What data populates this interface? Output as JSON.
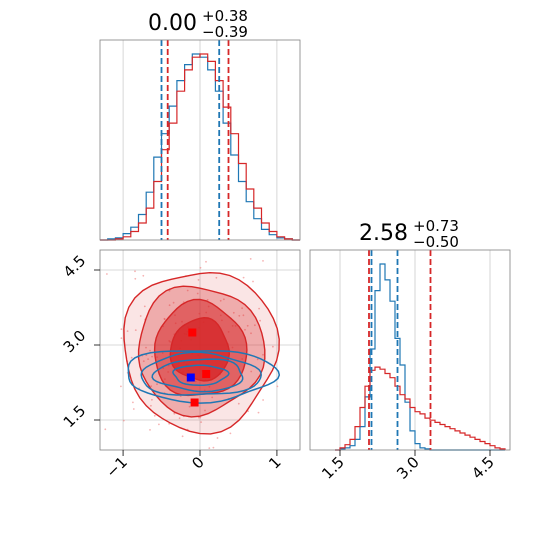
{
  "chart_data": [
    {
      "type": "step-histogram",
      "panel": "top-left",
      "title": {
        "value": "0.00",
        "upper": "+0.38",
        "lower": "−0.39"
      },
      "xlim": [
        -1.3,
        1.3
      ],
      "grid": true,
      "x": [
        -1.25,
        -1.15,
        -1.05,
        -0.95,
        -0.85,
        -0.75,
        -0.65,
        -0.55,
        -0.45,
        -0.35,
        -0.25,
        -0.15,
        -0.05,
        0.05,
        0.15,
        0.25,
        0.35,
        0.45,
        0.55,
        0.65,
        0.75,
        0.85,
        0.95,
        1.05,
        1.15,
        1.25
      ],
      "series": [
        {
          "color": "#1f77b4",
          "values": [
            0,
            1,
            2,
            6,
            12,
            24,
            45,
            78,
            100,
            126,
            150,
            165,
            175,
            172,
            160,
            140,
            110,
            80,
            55,
            36,
            20,
            10,
            5,
            2,
            1,
            0
          ],
          "quantiles": [
            -0.5,
            0.25
          ]
        },
        {
          "color": "#d62728",
          "values": [
            0,
            0,
            1,
            3,
            8,
            16,
            30,
            55,
            85,
            110,
            140,
            160,
            172,
            175,
            168,
            150,
            125,
            100,
            72,
            48,
            30,
            16,
            8,
            3,
            1,
            0
          ],
          "quantiles": [
            -0.42,
            0.37
          ]
        }
      ]
    },
    {
      "type": "contour",
      "panel": "bottom-left",
      "xlim": [
        -1.3,
        1.3
      ],
      "ylim": [
        0.9,
        4.9
      ],
      "x_ticks": [
        "−1",
        "0",
        "1"
      ],
      "y_ticks": [
        "1.5",
        "3.0",
        "4.5"
      ],
      "grid": true,
      "series": [
        {
          "color": "#d62728",
          "filled": true,
          "center": [
            0.0,
            2.9
          ],
          "radii": [
            [
              1.0,
              1.6
            ],
            [
              0.82,
              1.28
            ],
            [
              0.6,
              0.95
            ],
            [
              0.38,
              0.62
            ]
          ]
        },
        {
          "color": "#1f77b4",
          "filled": false,
          "center": [
            0.0,
            2.4
          ],
          "radii": [
            [
              0.98,
              0.52
            ],
            [
              0.78,
              0.42
            ],
            [
              0.58,
              0.32
            ],
            [
              0.35,
              0.2
            ]
          ]
        }
      ],
      "markers": [
        {
          "color": "#0000ff",
          "x": -0.12,
          "y": 2.35
        },
        {
          "color": "#ff0000",
          "x": -0.1,
          "y": 3.25
        },
        {
          "color": "#ff0000",
          "x": 0.08,
          "y": 2.42
        },
        {
          "color": "#ff0000",
          "x": -0.07,
          "y": 1.85
        }
      ]
    },
    {
      "type": "step-histogram",
      "panel": "bottom-right",
      "title": {
        "value": "2.58",
        "upper": "+0.73",
        "lower": "−0.50"
      },
      "xlim": [
        0.9,
        4.9
      ],
      "x_ticks": [
        "1.5",
        "3.0",
        "4.5"
      ],
      "grid": true,
      "x": [
        1.45,
        1.55,
        1.65,
        1.75,
        1.85,
        1.95,
        2.05,
        2.15,
        2.25,
        2.35,
        2.45,
        2.55,
        2.65,
        2.75,
        2.85,
        2.95,
        3.05,
        3.15,
        3.25,
        3.35,
        3.45,
        3.55,
        3.65,
        3.75,
        3.85,
        3.95,
        4.05,
        4.15,
        4.25,
        4.35,
        4.45,
        4.55,
        4.65,
        4.75
      ],
      "series": [
        {
          "color": "#1f77b4",
          "values": [
            0,
            1,
            2,
            4,
            10,
            22,
            50,
            95,
            150,
            175,
            160,
            140,
            105,
            80,
            45,
            18,
            6,
            2,
            1,
            0,
            0,
            0,
            0,
            0,
            0,
            0,
            0,
            0,
            0,
            0,
            0,
            0,
            0,
            0
          ],
          "quantiles": [
            2.13,
            2.65
          ]
        },
        {
          "color": "#d62728",
          "values": [
            0,
            2,
            5,
            10,
            22,
            40,
            60,
            75,
            78,
            76,
            72,
            68,
            60,
            52,
            48,
            40,
            36,
            34,
            30,
            28,
            26,
            24,
            22,
            20,
            18,
            16,
            14,
            12,
            10,
            8,
            6,
            4,
            2,
            1
          ],
          "quantiles": [
            2.08,
            3.31
          ]
        }
      ]
    }
  ]
}
